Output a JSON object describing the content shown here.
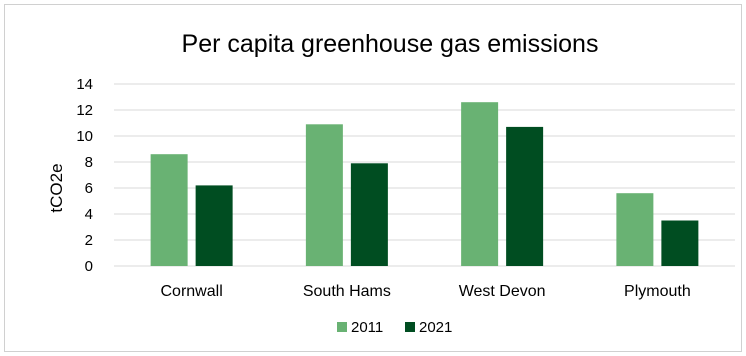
{
  "chart_data": {
    "type": "bar",
    "title": "Per capita greenhouse gas emissions",
    "xlabel": "",
    "ylabel": "tCO2e",
    "ylim": [
      0,
      14
    ],
    "yticks": [
      0,
      2,
      4,
      6,
      8,
      10,
      12,
      14
    ],
    "grid": true,
    "legend_position": "bottom",
    "categories": [
      "Cornwall",
      "South Hams",
      "West Devon",
      "Plymouth"
    ],
    "series": [
      {
        "name": "2011",
        "color": "#69b273",
        "values": [
          8.6,
          10.9,
          12.6,
          5.6
        ]
      },
      {
        "name": "2021",
        "color": "#004d21",
        "values": [
          6.2,
          7.9,
          10.7,
          3.5
        ]
      }
    ]
  }
}
